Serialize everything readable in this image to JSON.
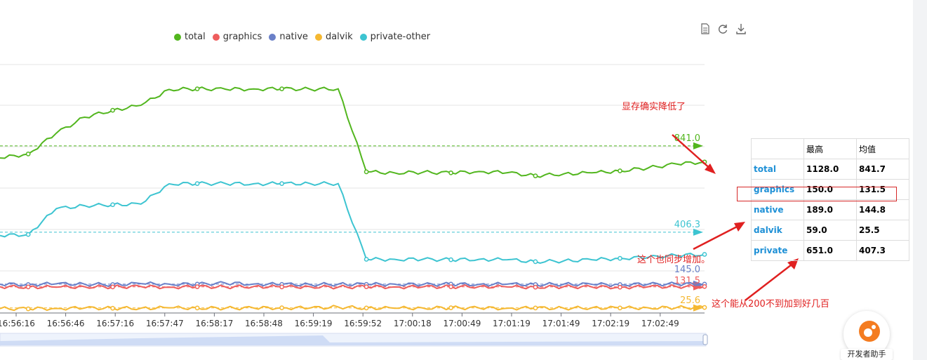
{
  "toolbar": {
    "icons": [
      "data-view-icon",
      "refresh-icon",
      "download-icon"
    ]
  },
  "legend": [
    {
      "name": "total",
      "color": "#52b61e"
    },
    {
      "name": "graphics",
      "color": "#ee5d5d"
    },
    {
      "name": "native",
      "color": "#6a80c8"
    },
    {
      "name": "dalvik",
      "color": "#f5b831"
    },
    {
      "name": "private-other",
      "color": "#3dc4d1"
    }
  ],
  "chart_data": {
    "type": "line",
    "x_ticks": [
      "16:56:16",
      "16:56:46",
      "16:57:16",
      "16:57:47",
      "16:58:17",
      "16:58:48",
      "16:59:19",
      "16:59:52",
      "17:00:18",
      "17:00:49",
      "17:01:19",
      "17:01:49",
      "17:02:19",
      "17:02:49"
    ],
    "ylim": [
      0,
      1250
    ],
    "series": [
      {
        "name": "total",
        "color": "#52b61e",
        "values": [
          780,
          800,
          905,
          985,
          1020,
          1045,
          1125,
          1128,
          1126,
          1127,
          1128,
          1126,
          1128,
          710,
          705,
          708,
          705,
          712,
          706,
          690,
          700,
          705,
          715,
          730,
          750,
          760
        ]
      },
      {
        "name": "private-other",
        "color": "#3dc4d1",
        "values": [
          390,
          395,
          525,
          540,
          545,
          548,
          650,
          651,
          651,
          650,
          651,
          651,
          651,
          270,
          270,
          270,
          268,
          270,
          268,
          258,
          262,
          268,
          275,
          280,
          290,
          295
        ]
      },
      {
        "name": "native",
        "color": "#6a80c8",
        "values": [
          145,
          143,
          147,
          145,
          143,
          148,
          145,
          145,
          150,
          146,
          144,
          143,
          145,
          144,
          145,
          143,
          145,
          144,
          145,
          143,
          145,
          144,
          143,
          145,
          146,
          145
        ]
      },
      {
        "name": "graphics",
        "color": "#ee5d5d",
        "values": [
          132,
          131,
          130,
          132,
          131,
          133,
          130,
          132,
          131,
          133,
          131,
          132,
          130,
          132,
          131,
          131,
          132,
          133,
          131,
          130,
          132,
          131,
          130,
          132,
          133,
          133
        ]
      },
      {
        "name": "dalvik",
        "color": "#f5b831",
        "values": [
          22,
          21,
          23,
          25,
          24,
          24,
          26,
          25,
          24,
          25,
          26,
          25,
          30,
          25,
          24,
          25,
          26,
          25,
          24,
          25,
          24,
          26,
          25,
          26,
          27,
          28
        ]
      }
    ],
    "mark_lines": [
      {
        "series": "total",
        "value": 841.0,
        "label": "841.0",
        "color": "#52b61e"
      },
      {
        "series": "private-other",
        "value": 406.3,
        "label": "406.3",
        "color": "#3dc4d1"
      },
      {
        "series": "native",
        "value": 145.0,
        "label": "145.0",
        "color": "#6a80c8"
      },
      {
        "series": "graphics",
        "value": 131.5,
        "label": "131.5",
        "color": "#ee5d5d"
      },
      {
        "series": "dalvik",
        "value": 25.6,
        "label": "25.6",
        "color": "#f5b831"
      }
    ]
  },
  "stats_table": {
    "headers": [
      "",
      "最高",
      "均值"
    ],
    "rows": [
      {
        "name": "total",
        "max": "1128.0",
        "avg": "841.7"
      },
      {
        "name": "graphics",
        "max": "150.0",
        "avg": "131.5"
      },
      {
        "name": "native",
        "max": "189.0",
        "avg": "144.8"
      },
      {
        "name": "dalvik",
        "max": "59.0",
        "avg": "25.5"
      },
      {
        "name": "private",
        "max": "651.0",
        "avg": "407.3"
      }
    ]
  },
  "annotations": {
    "note1": "显存确实降低了",
    "note2": "这个也同步增加。",
    "note3": "这个能从200不到加到好几百"
  },
  "assistant": {
    "label": "开发者助手"
  }
}
